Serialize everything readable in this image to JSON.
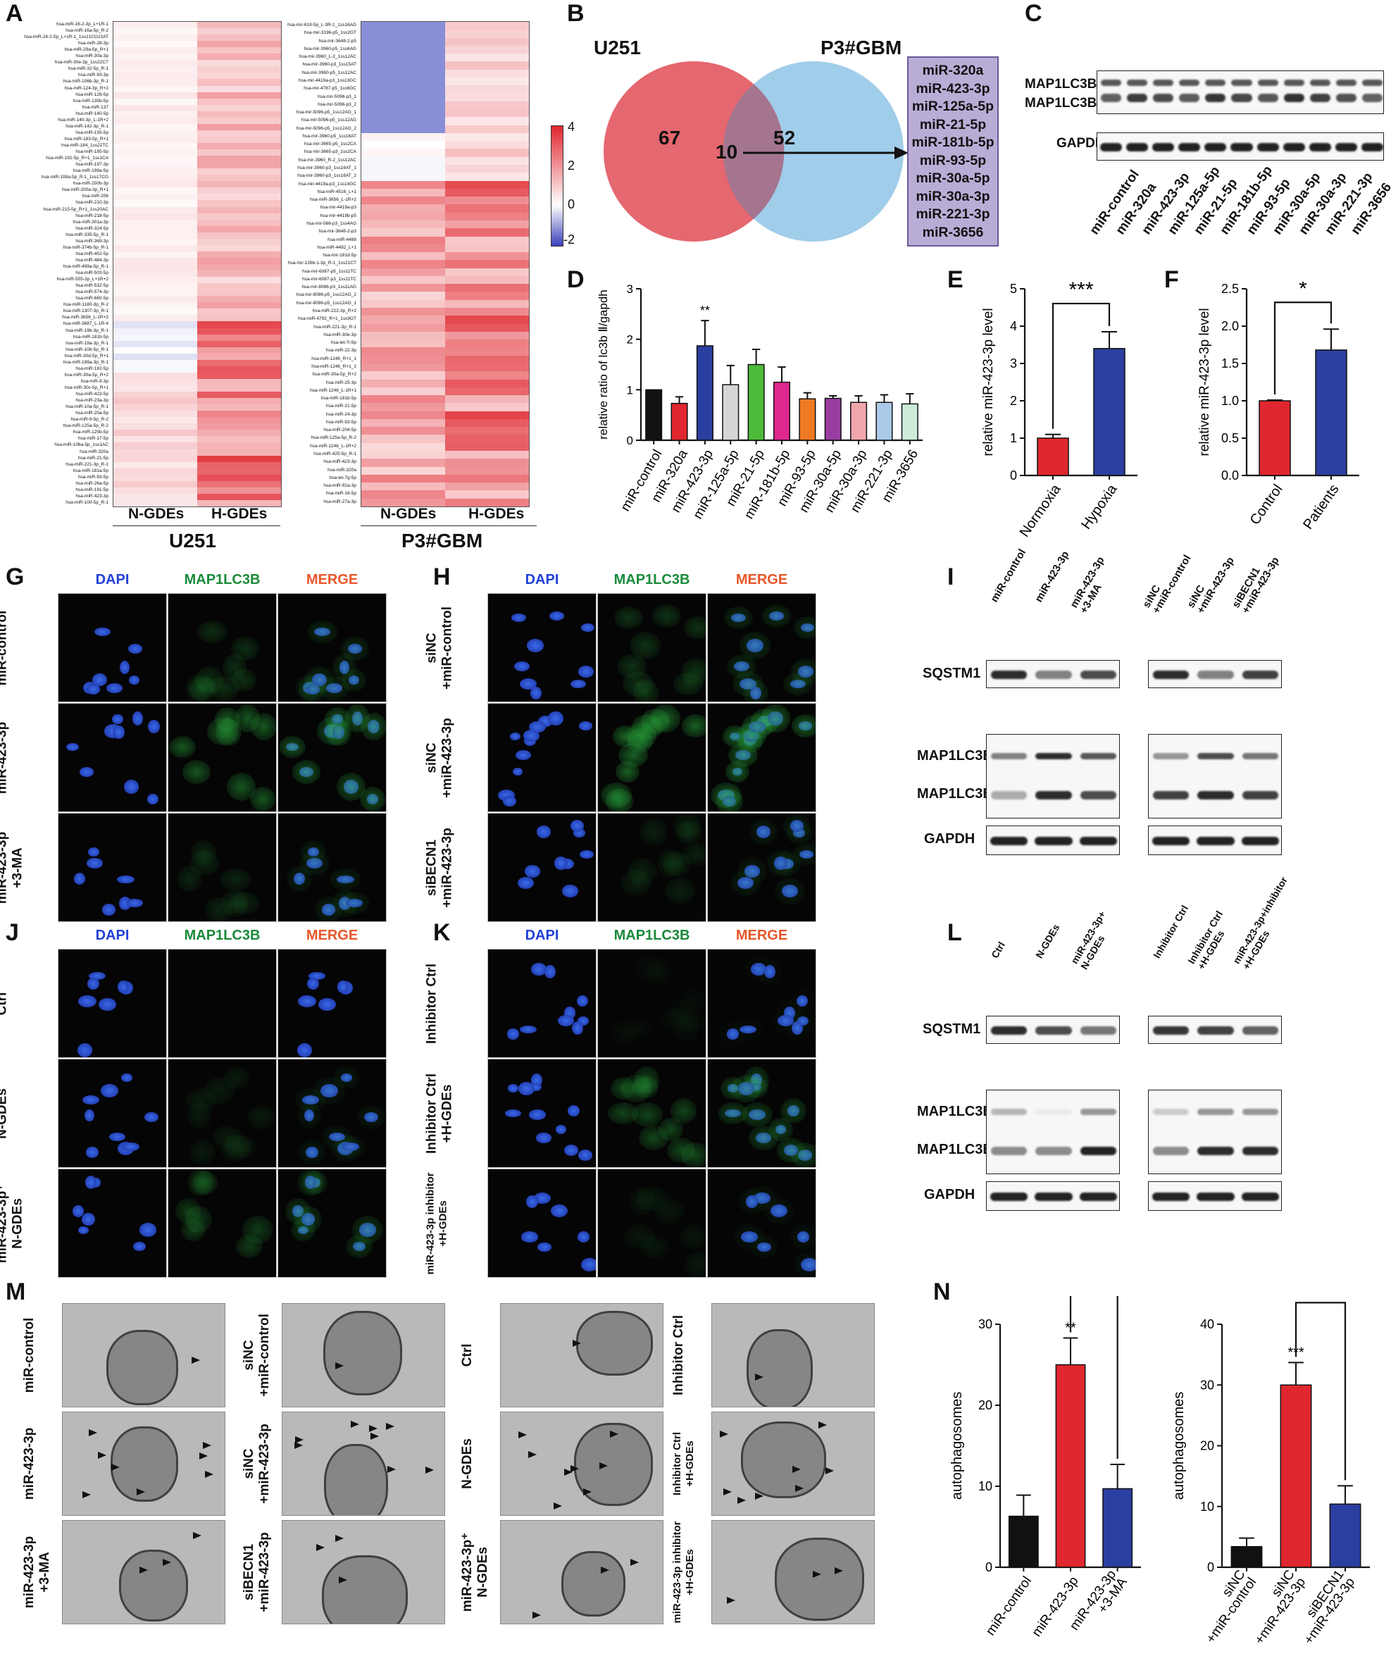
{
  "panels": {
    "A": "A",
    "B": "B",
    "C": "C",
    "D": "D",
    "E": "E",
    "F": "F",
    "G": "G",
    "H": "H",
    "I": "I",
    "J": "J",
    "K": "K",
    "L": "L",
    "M": "M",
    "N": "N"
  },
  "heatmapA": {
    "u251_cols": [
      "N-GDEs",
      "H-GDEs"
    ],
    "u251_title": "U251",
    "p3_cols": [
      "N-GDEs",
      "H-GDEs"
    ],
    "p3_title": "P3#GBM",
    "colorbar_ticks": [
      "4",
      "2",
      "0",
      "-2"
    ],
    "colors": {
      "low": "#5a63c8",
      "mid": "#ffffff",
      "high": "#e0262e"
    },
    "u251_rows": [
      "hsa-miR-16-2-3p_L+1R-1",
      "hsa-miR-16a-5p_R-2",
      "hsa-miR-24-2-5p_L+1R-1_1ss21CG22AT",
      "hsa-miR-28-3p",
      "hsa-miR-29a-5p_R+1",
      "hsa-miR-30a-3p",
      "hsa-miR-30e-3p_1ss22CT",
      "hsa-miR-32-5p_R-1",
      "hsa-miR-93-3p",
      "hsa-miR-106b-3p_R-1",
      "hsa-miR-124-3p_R+2",
      "hsa-miR-126-5p",
      "hsa-miR-135b-5p",
      "hsa-miR-137",
      "hsa-miR-140-5p",
      "hsa-miR-140-3p_L-1R+2",
      "hsa-miR-142-3p_R-1",
      "hsa-miR-155-5p",
      "hsa-miR-183-5p_R+1",
      "hsa-miR-184_1ss22TC",
      "hsa-miR-185-5p",
      "hsa-miR-192-5p_R+1_1ss1CA",
      "hsa-miR-197-3p",
      "hsa-miR-199a-5p",
      "hsa-miR-199a-5p_R-1_1ss17CG",
      "hsa-miR-200b-3p",
      "hsa-miR-200a-3p_R+1",
      "hsa-miR-206",
      "hsa-miR-210-3p",
      "hsa-miR-215-5p_R+1_1ss20AC",
      "hsa-miR-218-5p",
      "hsa-miR-301a-3p",
      "hsa-miR-324-5p",
      "hsa-miR-335-5p_R-1",
      "hsa-miR-369-3p",
      "hsa-miR-374b-5p_R-1",
      "hsa-miR-452-5p",
      "hsa-miR-484-3p",
      "hsa-miR-499a-5p_R-1",
      "hsa-miR-503-5p",
      "hsa-miR-505-3p_L+1R+2",
      "hsa-miR-532-5p",
      "hsa-miR-574-3p",
      "hsa-miR-660-5p",
      "hsa-miR-1180-3p_R-2",
      "hsa-miR-1307-3p_R-1",
      "hsa-miR-3656_L-1R+2",
      "hsa-miR-3687_L-1R-4",
      "hsa-miR-19b-3p_R-1",
      "hsa-miR-181b-5p",
      "hsa-miR-19a-3p_R-1",
      "hsa-miR-10b-5p_R-1",
      "hsa-miR-30d-5p_R+1",
      "hsa-miR-199a-3p_R-1",
      "hsa-miR-182-5p",
      "hsa-miR-30a-5p_R+2",
      "hsa-miR-9-3p",
      "hsa-miR-30c-5p_R+1",
      "hsa-miR-423-5p",
      "hsa-miR-23a-3p",
      "hsa-miR-10a-5p_R-1",
      "hsa-miR-20a-5p",
      "hsa-miR-9-5p_R-2",
      "hsa-miR-125a-5p_R-2",
      "hsa-miR-125b-5p",
      "hsa-miR-17-5p",
      "hsa-miR-106a-5p_1ss1AC",
      "hsa-miR-320a",
      "hsa-miR-21-5p",
      "hsa-miR-221-3p_R-1",
      "hsa-miR-181a-5p",
      "hsa-miR-93-5p",
      "hsa-miR-26a-5p",
      "hsa-miR-191-5p",
      "hsa-miR-423-3p",
      "hsa-miR-100-5p_R-1"
    ],
    "p3_rows": [
      "hsa-mir-619-5p_L-3R-1_1ss16AG",
      "hsa-mir-3196-p5_1ss2GT",
      "hsa-mir-3648-2-p5",
      "hsa-mir-3960-p5_1ss6AG",
      "hsa-mir-3960_L-2_1ss12AC",
      "hsa-mir-3960-p3_1ss15AT",
      "hsa-mir-3960-p5_1ss12AC",
      "hsa-mir-4419a-p3_1ss13GC",
      "hsa-mir-4787-p5_1ss6GC",
      "hsa-mir-5096-p3_1",
      "hsa-mir-5096-p3_2",
      "hsa-mir-5096-p5_1ss12AG_1",
      "hsa-mir-5096-p5_1ss12AG",
      "hsa-mir-5096-p5_1ss12AG_2",
      "hsa-mir-3960-p5_1ss16AT",
      "hsa-mir-3665-p5_1ss2CA",
      "hsa-mir-3665-p3_1ss2CA",
      "hsa-mir-3960_R-2_1ss12AC",
      "hsa-mir-3960-p3_1ss16AT_1",
      "hsa-mir-3960-p3_1ss16AT_2",
      "hsa-mir-4419a-p3_1ss14GC",
      "hsa-miR-4516_L+1",
      "hsa-miR-3656_L-1R+2",
      "hsa-mir-4419a-p3",
      "hsa-mir-4419b-p5",
      "hsa-mir-566-p3_1ss4AG",
      "hsa-mir-3648-2-p3",
      "hsa-miR-4488",
      "hsa-miR-4492_L+1",
      "hsa-mir-181d-5p",
      "hsa-mir-126b-1-3p_R-1_1ss21CT",
      "hsa-mir-6087-p5_1ss11TC",
      "hsa-mir-6087-p3_1ss11TC",
      "hsa-mir-8086-p3_1ss11AG",
      "hsa-mir-8086-p5_1ss12AG_2",
      "hsa-mir-8086-p5_1ss12AG_1",
      "hsa-miR-222-3p_R+2",
      "hsa-miR-4792_R+1_1ss9GT",
      "hsa-miR-221-3p_R-1",
      "hsa-miR-30e-3p",
      "hsa-let-7i-5p",
      "hsa-miR-22-3p",
      "hsa-miR-1246_R+1_1",
      "hsa-miR-1246_R+1_2",
      "hsa-miR-30a-5p_R+2",
      "hsa-miR-25-3p",
      "hsa-miR-1246_L-1R+1",
      "hsa-miR-181b-5p",
      "hsa-miR-21-5p",
      "hsa-miR-24-3p",
      "hsa-miR-93-5p",
      "hsa-miR-204-5p",
      "hsa-miR-125a-5p_R-2",
      "hsa-miR-1246_L-1R+2",
      "hsa-miR-425-5p_R-1",
      "hsa-miR-423-3p",
      "hsa-miR-320a",
      "hsa-let-7g-5p",
      "hsa-miR-92a-3p",
      "hsa-miR-16-5p",
      "hsa-miR-27a-3p"
    ]
  },
  "venn": {
    "left_title": "U251",
    "right_title": "P3#GBM",
    "left_only": "67",
    "overlap": "10",
    "right_only": "52",
    "colors": {
      "left": "#e35a63",
      "right": "#8fc4e6",
      "box": "#b9add6"
    },
    "mirs": [
      "miR-320a",
      "miR-423-3p",
      "miR-125a-5p",
      "miR-21-5p",
      "miR-181b-5p",
      "miR-93-5p",
      "miR-30a-5p",
      "miR-30a-3p",
      "miR-221-3p",
      "miR-3656"
    ]
  },
  "blotC": {
    "bands": [
      "MAP1LC3B-Ⅰ",
      "MAP1LC3B-Ⅱ",
      "GAPDH"
    ],
    "lanes": [
      "miR-control",
      "miR-320a",
      "miR-423-3p",
      "miR-125a-5p",
      "miR-21-5p",
      "miR-181b-5p",
      "miR-93-5p",
      "miR-30a-5p",
      "miR-30a-3p",
      "miR-221-3p",
      "miR-3656"
    ]
  },
  "chart_data": [
    {
      "panel": "D",
      "type": "bar",
      "ylabel": "relative ratio of lc3b Ⅱ/gapdh",
      "ylim": [
        0,
        3
      ],
      "yticks": [
        0,
        1,
        2,
        3
      ],
      "categories": [
        "miR-control",
        "miR-320a",
        "miR-423-3p",
        "miR-125a-5p",
        "miR-21-5p",
        "miR-181b-5p",
        "miR-93-5p",
        "miR-30a-5p",
        "miR-30a-3p",
        "miR-221-3p",
        "miR-3656"
      ],
      "values": [
        1.0,
        0.73,
        1.87,
        1.1,
        1.5,
        1.15,
        0.82,
        0.83,
        0.75,
        0.75,
        0.72
      ],
      "errors": [
        0.0,
        0.13,
        0.5,
        0.38,
        0.3,
        0.3,
        0.12,
        0.05,
        0.13,
        0.15,
        0.2
      ],
      "colors": [
        "#111111",
        "#e0262e",
        "#2b3fa0",
        "#d6d6d6",
        "#4cbb3a",
        "#e0268f",
        "#f07a22",
        "#9a3da0",
        "#f1a6ae",
        "#a9cbe8",
        "#cdebd9"
      ],
      "annotations": [
        {
          "category": "miR-423-3p",
          "text": "**"
        }
      ]
    },
    {
      "panel": "E",
      "type": "bar",
      "ylabel": "relative miR-423-3p level",
      "ylim": [
        0,
        5
      ],
      "yticks": [
        0,
        1,
        2,
        3,
        4,
        5
      ],
      "categories": [
        "Normoxia",
        "Hypoxia"
      ],
      "values": [
        1.0,
        3.4
      ],
      "errors": [
        0.1,
        0.45
      ],
      "colors": [
        "#e0262e",
        "#2b3fa0"
      ],
      "bracket": {
        "from": "Normoxia",
        "to": "Hypoxia",
        "text": "***"
      }
    },
    {
      "panel": "F",
      "type": "bar",
      "ylabel": "relative miR-423-3p level",
      "ylim": [
        0,
        2.5
      ],
      "yticks": [
        0.0,
        0.5,
        1.0,
        1.5,
        2.0,
        2.5
      ],
      "categories": [
        "Control",
        "Patients"
      ],
      "values": [
        1.0,
        1.68
      ],
      "errors": [
        0.01,
        0.28
      ],
      "colors": [
        "#e0262e",
        "#2b3fa0"
      ],
      "bracket": {
        "from": "Control",
        "to": "Patients",
        "text": "*"
      }
    },
    {
      "panel": "N-left",
      "type": "bar",
      "ylabel": "autophagosomes",
      "ylim": [
        0,
        30
      ],
      "yticks": [
        0,
        10,
        20,
        30
      ],
      "categories": [
        "miR-control",
        "miR-423-3p",
        "miR-423-3p\n+3-MA"
      ],
      "values": [
        6.3,
        25.0,
        9.7
      ],
      "errors": [
        2.6,
        3.3,
        3.0
      ],
      "colors": [
        "#111111",
        "#e0262e",
        "#2b3fa0"
      ],
      "annotations": [
        {
          "category": "miR-423-3p",
          "text": "**"
        }
      ],
      "bracket": {
        "from": "miR-423-3p",
        "to": "miR-423-3p\n+3-MA",
        "text": "**"
      }
    },
    {
      "panel": "N-right",
      "type": "bar",
      "ylabel": "autophagosomes",
      "ylim": [
        0,
        40
      ],
      "yticks": [
        0,
        10,
        20,
        30,
        40
      ],
      "categories": [
        "siNC\n+miR-control",
        "siNC\n+miR-423-3p",
        "siBECN1\n+miR-423-3p"
      ],
      "values": [
        3.4,
        30.0,
        10.4
      ],
      "errors": [
        1.4,
        3.7,
        3.0
      ],
      "colors": [
        "#111111",
        "#e0262e",
        "#2b3fa0"
      ],
      "annotations": [
        {
          "category": "siNC\n+miR-423-3p",
          "text": "***"
        }
      ],
      "bracket": {
        "from": "siNC\n+miR-423-3p",
        "to": "siBECN1\n+miR-423-3p",
        "text": "**"
      }
    }
  ],
  "if_headers": {
    "dapi": "DAPI",
    "lc3": "MAP1LC3B",
    "merge": "MERGE",
    "colors": {
      "dapi": "#2140d8",
      "lc3": "#1a8a3a",
      "merge": "#e8562a"
    }
  },
  "panelG_rows": [
    "miR-control",
    "miR-423-3p",
    "miR-423-3p\n+3-MA"
  ],
  "panelH_rows": [
    "siNC\n+miR-control",
    "siNC\n+miR-423-3p",
    "siBECN1\n+miR-423-3p"
  ],
  "panelJ_rows": [
    "Ctrl",
    "N-GDEs",
    "miR-423-3p⁺\nN-GDEs"
  ],
  "panelK_rows": [
    "Inhibitor Ctrl",
    "Inhibitor Ctrl\n+H-GDEs",
    "miR-423-3p inhibitor\n+H-GDEs"
  ],
  "blotI": {
    "bands": [
      "SQSTM1",
      "MAP1LC3B-Ⅰ",
      "MAP1LC3B-Ⅱ",
      "GAPDH"
    ],
    "lanes_left": [
      "miR-control",
      "miR-423-3p",
      "miR-423-3p\n+3-MA"
    ],
    "lanes_right": [
      "siNC\n+miR-control",
      "siNC\n+miR-423-3p",
      "siBECN1\n+miR-423-3p"
    ]
  },
  "blotL": {
    "bands": [
      "SQSTM1",
      "MAP1LC3B-Ⅰ",
      "MAP1LC3B-Ⅱ",
      "GAPDH"
    ],
    "lanes_left": [
      "Ctrl",
      "N-GDEs",
      "miR-423-3p+\nN-GDEs"
    ],
    "lanes_right": [
      "Inhibitor Ctrl",
      "Inhibitor Ctrl\n+H-GDEs",
      "miR-423-3p+inhibitor\n+H-GDEs"
    ]
  },
  "em": {
    "col1": [
      "miR-control",
      "miR-423-3p",
      "miR-423-3p\n+3-MA"
    ],
    "col2": [
      "siNC\n+miR-control",
      "siNC\n+miR-423-3p",
      "siBECN1\n+miR-423-3p"
    ],
    "col3": [
      "Ctrl",
      "N-GDEs",
      "miR-423-3p⁺\nN-GDEs"
    ],
    "col4": [
      "Inhibitor Ctrl",
      "Inhibitor Ctrl\n+H-GDEs",
      "miR-423-3p inhibitor\n+H-GDEs"
    ]
  }
}
